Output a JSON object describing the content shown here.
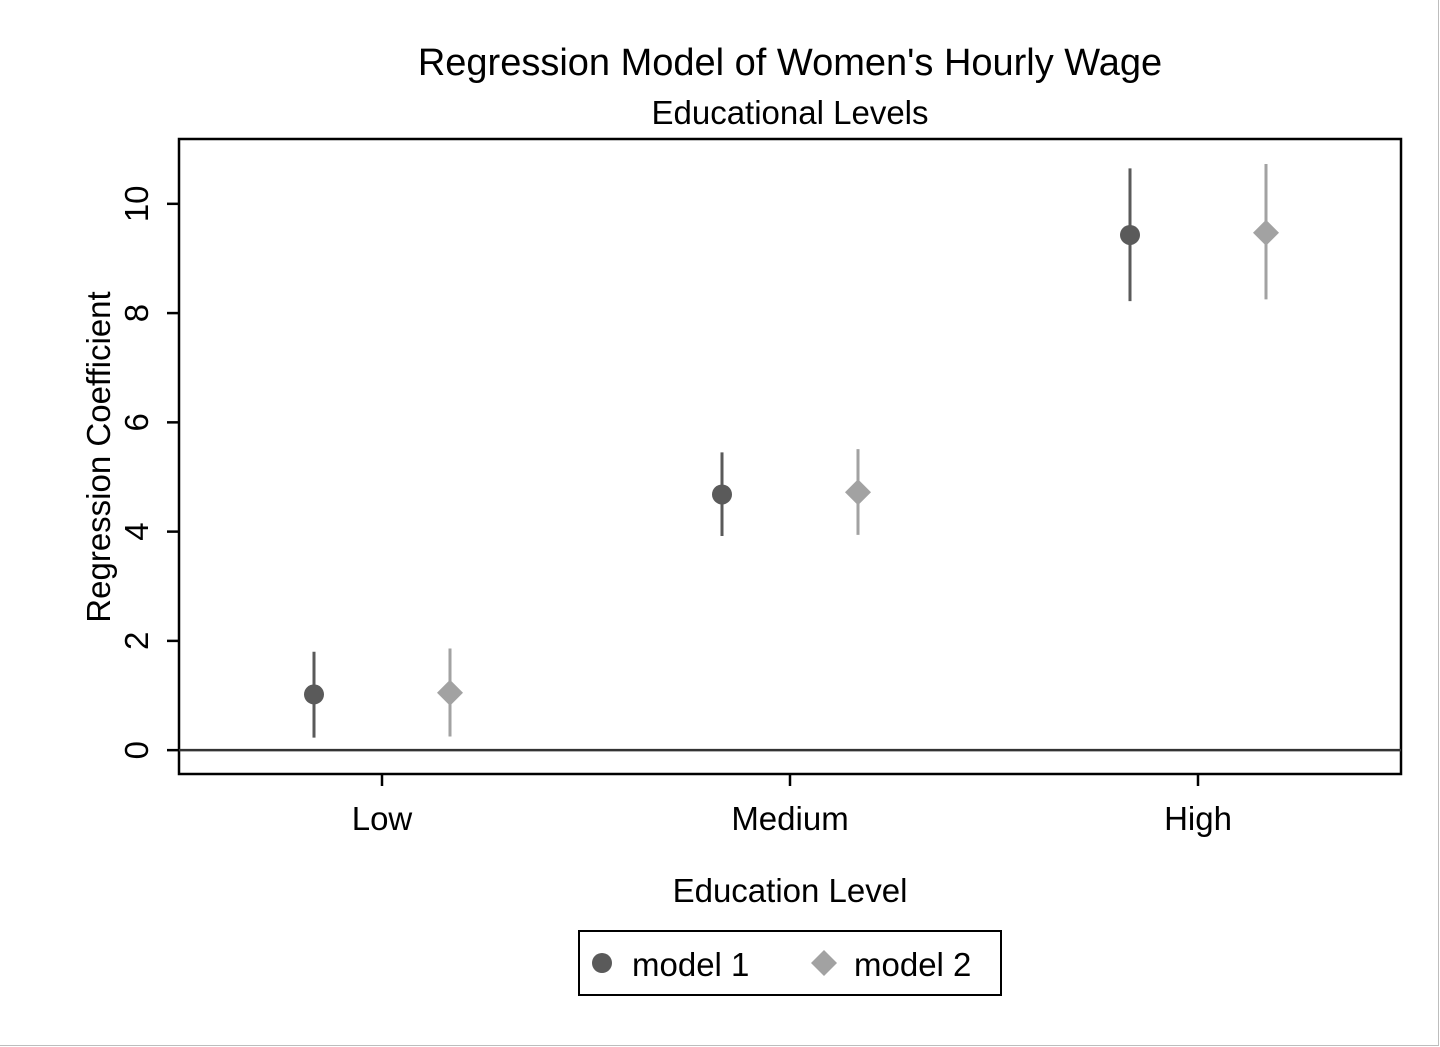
{
  "chart_data": {
    "type": "scatter",
    "title": "Regression Model of Women's Hourly Wage",
    "subtitle": "Educational Levels",
    "xlabel": "Education Level",
    "ylabel": "Regression Coefficient",
    "categories": [
      "Low",
      "Medium",
      "High"
    ],
    "ylim": [
      -0.4,
      11.15
    ],
    "yticks": [
      0,
      2,
      4,
      6,
      8,
      10
    ],
    "reference_line": {
      "y": 0
    },
    "grid": false,
    "legend": {
      "placement": "bottom-center"
    },
    "series": [
      {
        "name": "model 1",
        "marker": "circle",
        "color": "#5a5a5a",
        "values": [
          1.02,
          4.68,
          9.43
        ],
        "ci_low": [
          0.23,
          3.92,
          8.22
        ],
        "ci_high": [
          1.8,
          5.45,
          10.65
        ]
      },
      {
        "name": "model 2",
        "marker": "diamond",
        "color": "#a2a2a2",
        "values": [
          1.05,
          4.72,
          9.47
        ],
        "ci_low": [
          0.25,
          3.94,
          8.25
        ],
        "ci_high": [
          1.86,
          5.51,
          10.73
        ]
      }
    ]
  }
}
